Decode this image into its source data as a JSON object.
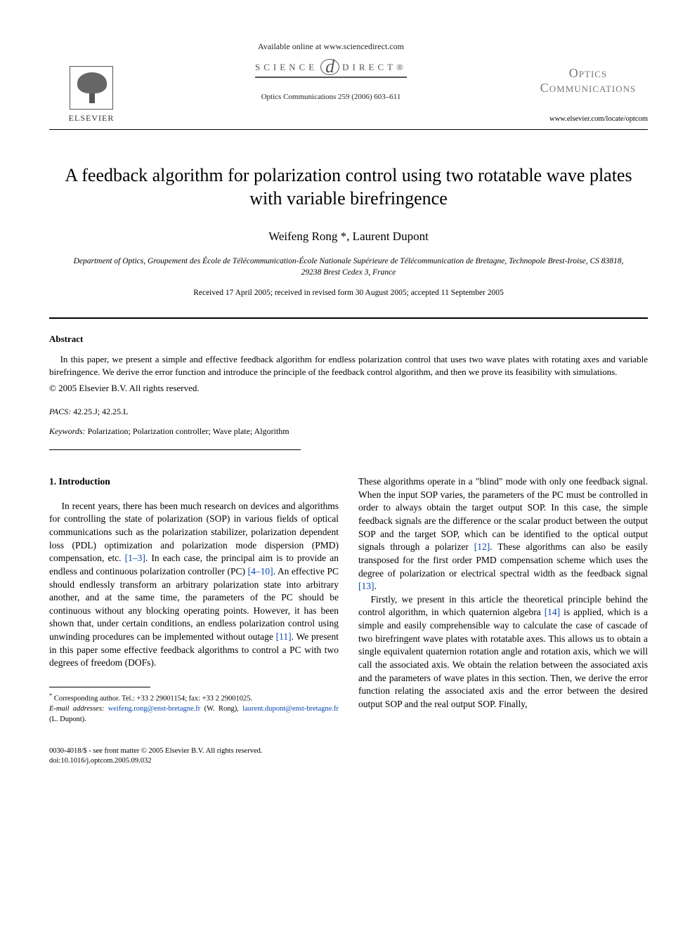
{
  "header": {
    "available_online": "Available online at www.sciencedirect.com",
    "sd_left": "SCIENCE",
    "sd_at": "d",
    "sd_right": "DIRECT®",
    "journal_ref": "Optics Communications 259 (2006) 603–611",
    "publisher_label": "ELSEVIER",
    "journal_title_line1": "Optics",
    "journal_title_line2": "Communications",
    "journal_url": "www.elsevier.com/locate/optcom"
  },
  "article": {
    "title": "A feedback algorithm for polarization control using two rotatable wave plates with variable birefringence",
    "authors": "Weifeng Rong *, Laurent Dupont",
    "affiliation": "Department of Optics, Groupement des École de Télécommunication-École Nationale Supérieure de Télécommunication de Bretagne, Technopole Brest-Iroise, CS 83818, 29238 Brest Cedex 3, France",
    "dates": "Received 17 April 2005; received in revised form 30 August 2005; accepted 11 September 2005"
  },
  "abstract": {
    "heading": "Abstract",
    "text": "In this paper, we present a simple and effective feedback algorithm for endless polarization control that uses two wave plates with rotating axes and variable birefringence. We derive the error function and introduce the principle of the feedback control algorithm, and then we prove its feasibility with simulations.",
    "copyright": "© 2005 Elsevier B.V. All rights reserved."
  },
  "pacs": {
    "label": "PACS:",
    "value": " 42.25.J; 42.25.L"
  },
  "keywords": {
    "label": "Keywords:",
    "value": " Polarization; Polarization controller; Wave plate; Algorithm"
  },
  "body": {
    "section_heading": "1. Introduction",
    "left_para_pre": "In recent years, there has been much research on devices and algorithms for controlling the state of polarization (SOP) in various fields of optical communications such as the polarization stabilizer, polarization dependent loss (PDL) optimization and polarization mode dispersion (PMD) compensation, etc. ",
    "cite1": "[1–3]",
    "left_mid1": ". In each case, the principal aim is to provide an endless and continuous polarization controller (PC) ",
    "cite2": "[4–10]",
    "left_mid2": ". An effective PC should endlessly transform an arbitrary polarization state into arbitrary another, and at the same time, the parameters of the PC should be continuous without any blocking operating points. However, it has been shown that, under certain conditions, an endless polarization control using unwinding procedures can be implemented without outage ",
    "cite3": "[11]",
    "left_tail": ". We present in this paper some effective feedback algorithms to control a PC with two degrees of freedom (DOFs). ",
    "right_p1_pre": "These algorithms operate in a \"blind\" mode with only one feedback signal. When the input SOP varies, the parameters of the PC must be controlled in order to always obtain the target output SOP. In this case, the simple feedback signals are the difference or the scalar product between the output SOP and the target SOP, which can be identified to the optical output signals through a polarizer ",
    "cite4": "[12]",
    "right_p1_mid": ". These algorithms can also be easily transposed for the first order PMD compensation scheme which uses the degree of polarization or electrical spectral width as the feedback signal ",
    "cite5": "[13]",
    "right_p1_tail": ".",
    "right_p2_pre": "Firstly, we present in this article the theoretical principle behind the control algorithm, in which quaternion algebra ",
    "cite6": "[14]",
    "right_p2_tail": " is applied, which is a simple and easily comprehensible way to calculate the case of cascade of two birefringent wave plates with rotatable axes. This allows us to obtain a single equivalent quaternion rotation angle and rotation axis, which we will call the associated axis. We obtain the relation between the associated axis and the parameters of wave plates in this section. Then, we derive the error function relating the associated axis and the error between the desired output SOP and the real output SOP. Finally,"
  },
  "footnote": {
    "corresponding": "Corresponding author. Tel.: +33 2 29001154; fax: +33 2 29001025.",
    "email_label": "E-mail addresses:",
    "email1": "weifeng.rong@enst-bretagne.fr",
    "email1_who": " (W. Rong), ",
    "email2": "laurent.dupont@enst-bretagne.fr",
    "email2_who": " (L. Dupont)."
  },
  "footer": {
    "line1": "0030-4018/$ - see front matter © 2005 Elsevier B.V. All rights reserved.",
    "line2": "doi:10.1016/j.optcom.2005.09.032"
  },
  "colors": {
    "link": "#0645ad",
    "text": "#000000",
    "grey": "#777777"
  }
}
